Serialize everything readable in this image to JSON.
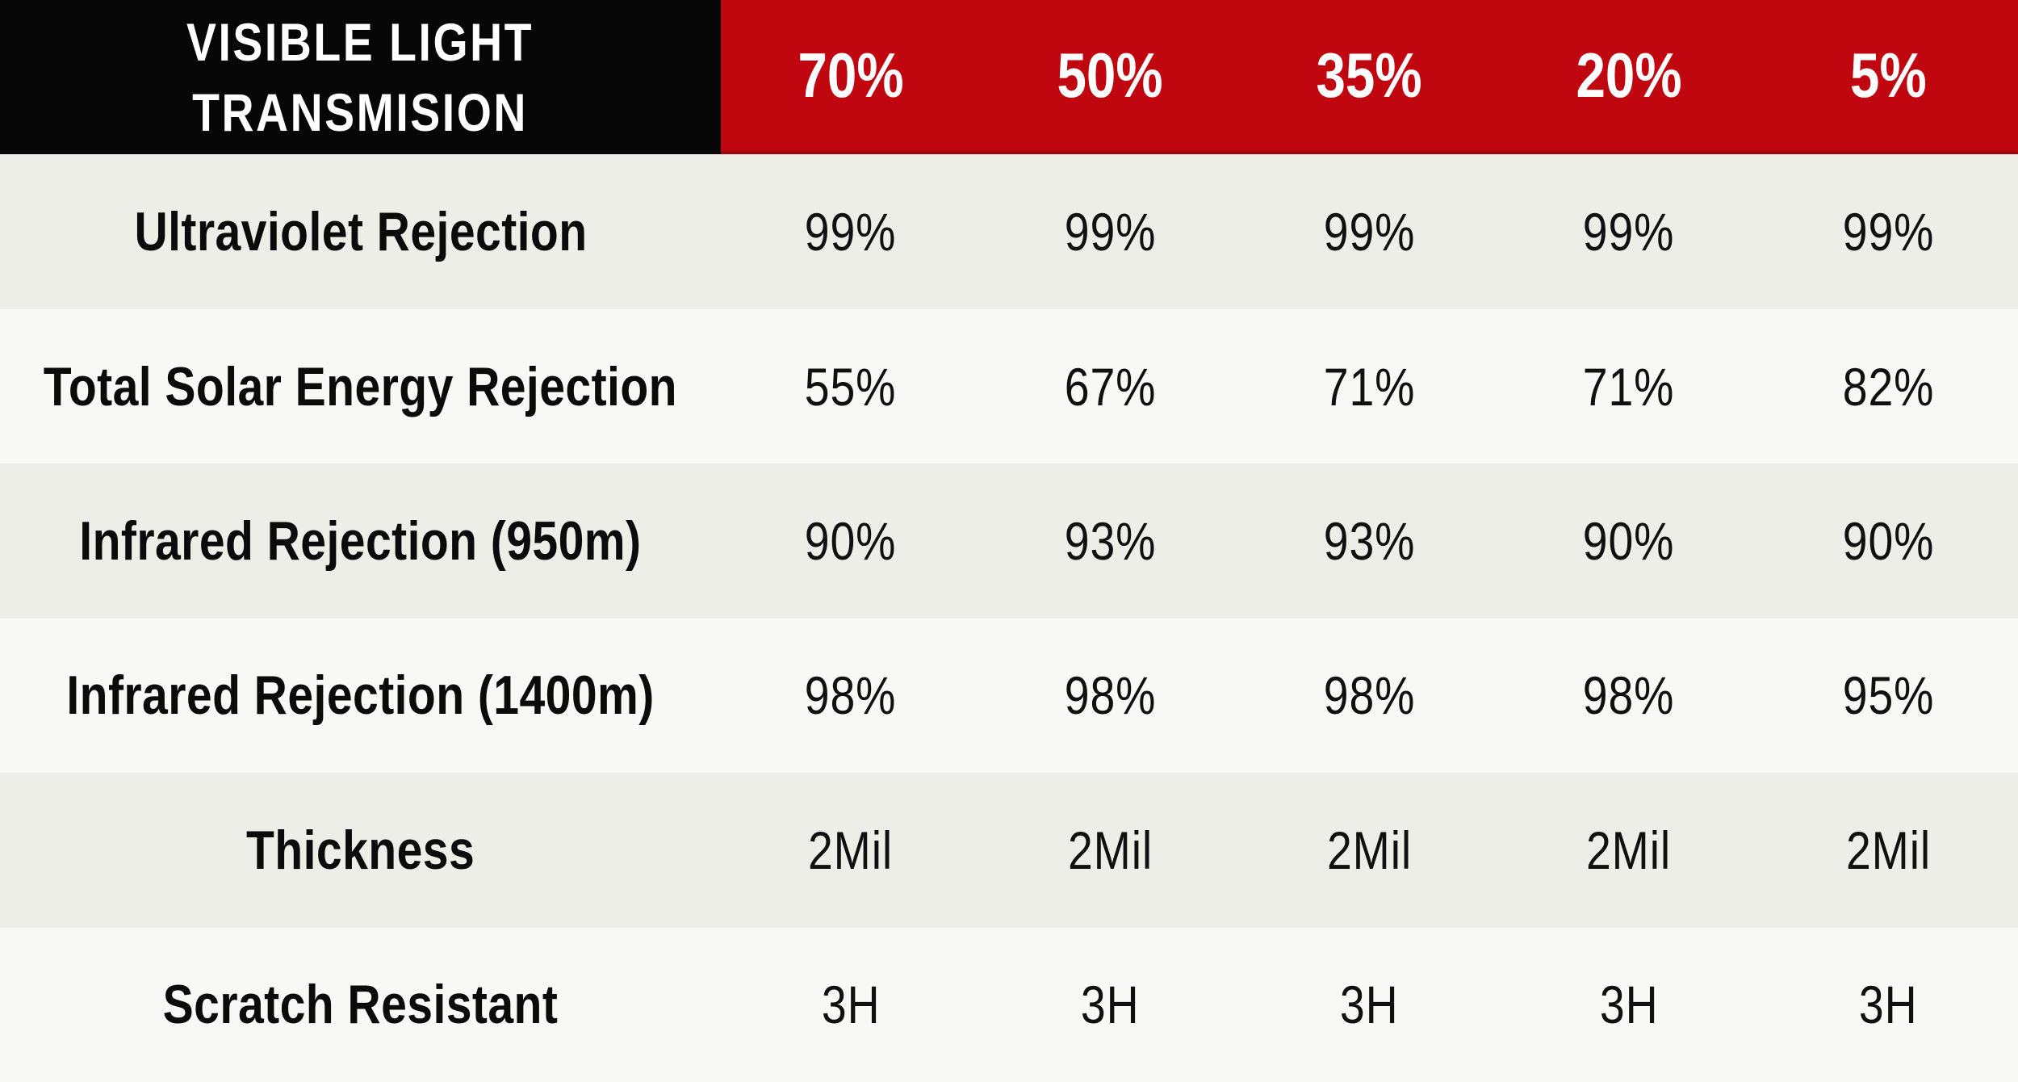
{
  "chart_data": {
    "type": "table",
    "title": "VISIBLE LIGHT TRANSMISION",
    "header": {
      "label_line1": "VISIBLE LIGHT",
      "label_line2": "TRANSMISION",
      "columns": [
        "70%",
        "50%",
        "35%",
        "20%",
        "5%"
      ]
    },
    "rows": [
      {
        "label": "Ultraviolet Rejection",
        "values": [
          "99%",
          "99%",
          "99%",
          "99%",
          "99%"
        ]
      },
      {
        "label": "Total Solar Energy Rejection",
        "values": [
          "55%",
          "67%",
          "71%",
          "71%",
          "82%"
        ]
      },
      {
        "label": "Infrared Rejection (950m)",
        "values": [
          "90%",
          "93%",
          "93%",
          "90%",
          "90%"
        ]
      },
      {
        "label": "Infrared Rejection (1400m)",
        "values": [
          "98%",
          "98%",
          "98%",
          "98%",
          "95%"
        ]
      },
      {
        "label": "Thickness",
        "values": [
          "2Mil",
          "2Mil",
          "2Mil",
          "2Mil",
          "2Mil"
        ]
      },
      {
        "label": "Scratch Resistant",
        "values": [
          "3H",
          "3H",
          "3H",
          "3H",
          "3H"
        ]
      }
    ],
    "layout": {
      "legend": "none",
      "grid": "off",
      "row_striping": [
        "gray",
        "white"
      ]
    }
  },
  "colors": {
    "header_label_bg": "#070707",
    "header_value_bg": "#C00710",
    "header_value_edge": "#A2040C",
    "header_text": "#FFFFFF",
    "row_bg_gray": "#EDEEE8",
    "row_bg_white": "#F8F8F6",
    "body_text": "#101010"
  }
}
